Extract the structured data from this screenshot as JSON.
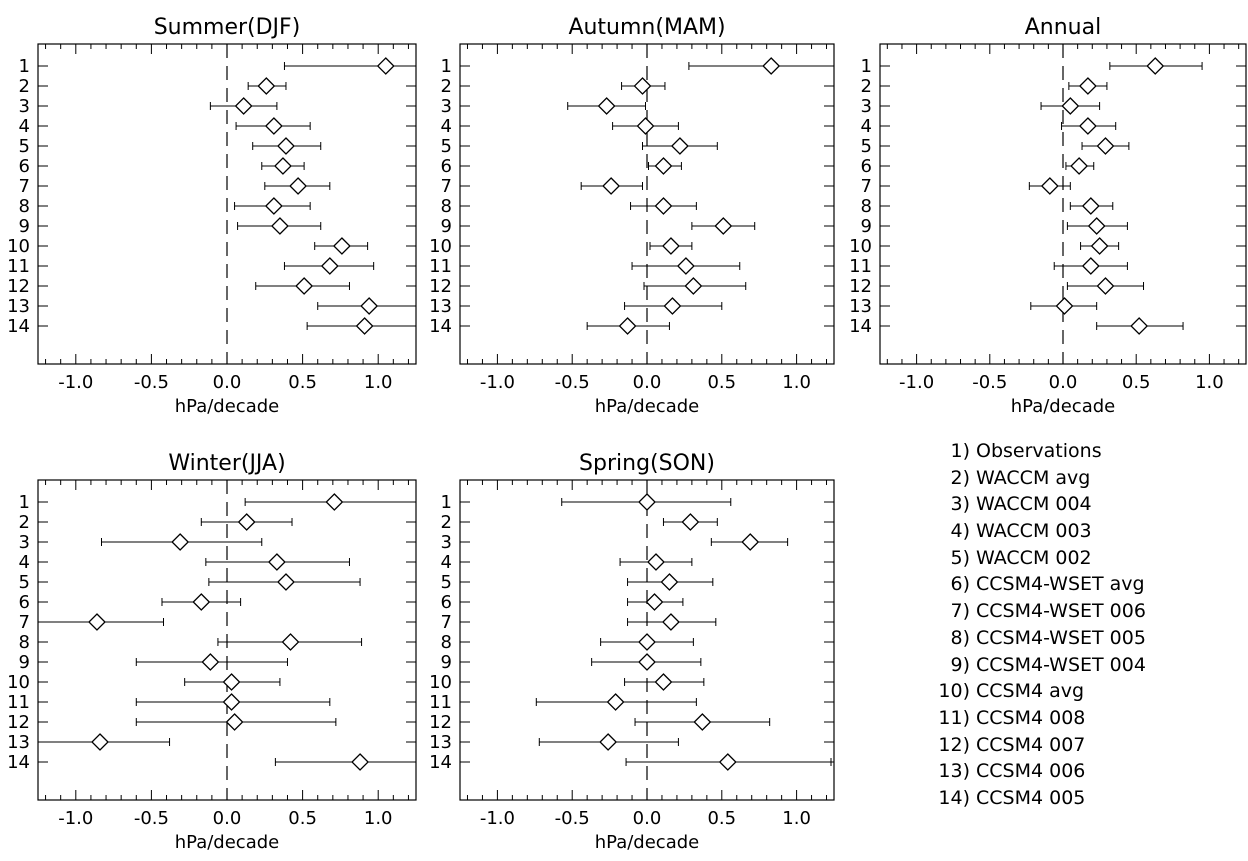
{
  "legend": {
    "items": [
      {
        "num": "1)",
        "label": "Observations"
      },
      {
        "num": "2)",
        "label": "WACCM avg"
      },
      {
        "num": "3)",
        "label": "WACCM 004"
      },
      {
        "num": "4)",
        "label": "WACCM 003"
      },
      {
        "num": "5)",
        "label": "WACCM 002"
      },
      {
        "num": "6)",
        "label": "CCSM4-WSET avg"
      },
      {
        "num": "7)",
        "label": "CCSM4-WSET 006"
      },
      {
        "num": "8)",
        "label": "CCSM4-WSET 005"
      },
      {
        "num": "9)",
        "label": "CCSM4-WSET 004"
      },
      {
        "num": "10)",
        "label": "CCSM4 avg"
      },
      {
        "num": "11)",
        "label": "CCSM4 008"
      },
      {
        "num": "12)",
        "label": "CCSM4 007"
      },
      {
        "num": "13)",
        "label": "CCSM4 006"
      },
      {
        "num": "14)",
        "label": "CCSM4 005"
      }
    ]
  },
  "chart_data": [
    {
      "type": "scatter",
      "title": "Summer(DJF)",
      "xlabel": "hPa/decade",
      "xlim": [
        -1.25,
        1.25
      ],
      "xticks": [
        "-1.0",
        "-0.5",
        "0.0",
        "0.5",
        "1.0"
      ],
      "y_labels": [
        "1",
        "2",
        "3",
        "4",
        "5",
        "6",
        "7",
        "8",
        "9",
        "10",
        "11",
        "12",
        "13",
        "14"
      ],
      "values": [
        1.05,
        0.26,
        0.11,
        0.31,
        0.39,
        0.37,
        0.47,
        0.31,
        0.35,
        0.76,
        0.68,
        0.51,
        0.94,
        0.91
      ],
      "lower": [
        0.38,
        0.14,
        -0.11,
        0.06,
        0.17,
        0.23,
        0.25,
        0.05,
        0.07,
        0.58,
        0.38,
        0.19,
        0.6,
        0.53
      ],
      "upper": [
        1.25,
        0.39,
        0.33,
        0.55,
        0.62,
        0.51,
        0.68,
        0.55,
        0.62,
        0.93,
        0.97,
        0.81,
        1.25,
        1.25
      ],
      "ref_line_x": 0.0
    },
    {
      "type": "scatter",
      "title": "Autumn(MAM)",
      "xlabel": "hPa/decade",
      "xlim": [
        -1.25,
        1.25
      ],
      "xticks": [
        "-1.0",
        "-0.5",
        "0.0",
        "0.5",
        "1.0"
      ],
      "y_labels": [
        "1",
        "2",
        "3",
        "4",
        "5",
        "6",
        "7",
        "8",
        "9",
        "10",
        "11",
        "12",
        "13",
        "14"
      ],
      "values": [
        0.83,
        -0.03,
        -0.27,
        -0.01,
        0.22,
        0.11,
        -0.24,
        0.11,
        0.51,
        0.16,
        0.26,
        0.31,
        0.17,
        -0.13
      ],
      "lower": [
        0.28,
        -0.17,
        -0.53,
        -0.23,
        -0.03,
        0.01,
        -0.44,
        -0.11,
        0.3,
        0.02,
        -0.1,
        -0.02,
        -0.15,
        -0.4
      ],
      "upper": [
        1.25,
        0.12,
        -0.01,
        0.21,
        0.47,
        0.23,
        -0.03,
        0.33,
        0.72,
        0.3,
        0.62,
        0.66,
        0.5,
        0.15
      ],
      "ref_line_x": 0.0
    },
    {
      "type": "scatter",
      "title": "Annual",
      "xlabel": "hPa/decade",
      "xlim": [
        -1.25,
        1.25
      ],
      "xticks": [
        "-1.0",
        "-0.5",
        "0.0",
        "0.5",
        "1.0"
      ],
      "y_labels": [
        "1",
        "2",
        "3",
        "4",
        "5",
        "6",
        "7",
        "8",
        "9",
        "10",
        "11",
        "12",
        "13",
        "14"
      ],
      "values": [
        0.63,
        0.17,
        0.05,
        0.17,
        0.29,
        0.11,
        -0.09,
        0.19,
        0.23,
        0.25,
        0.19,
        0.29,
        0.01,
        0.52
      ],
      "lower": [
        0.32,
        0.04,
        -0.15,
        -0.01,
        0.13,
        0.02,
        -0.23,
        0.05,
        0.03,
        0.12,
        -0.06,
        0.03,
        -0.22,
        0.23
      ],
      "upper": [
        0.95,
        0.3,
        0.25,
        0.36,
        0.45,
        0.21,
        0.05,
        0.34,
        0.44,
        0.38,
        0.44,
        0.55,
        0.23,
        0.82
      ],
      "ref_line_x": 0.0
    },
    {
      "type": "scatter",
      "title": "Winter(JJA)",
      "xlabel": "hPa/decade",
      "xlim": [
        -1.25,
        1.25
      ],
      "xticks": [
        "-1.0",
        "-0.5",
        "0.0",
        "0.5",
        "1.0"
      ],
      "y_labels": [
        "1",
        "2",
        "3",
        "4",
        "5",
        "6",
        "7",
        "8",
        "9",
        "10",
        "11",
        "12",
        "13",
        "14"
      ],
      "values": [
        0.71,
        0.13,
        -0.31,
        0.33,
        0.39,
        -0.17,
        -0.86,
        0.42,
        -0.11,
        0.03,
        0.03,
        0.05,
        -0.84,
        0.88
      ],
      "lower": [
        0.12,
        -0.17,
        -0.83,
        -0.14,
        -0.12,
        -0.43,
        -1.25,
        -0.06,
        -0.6,
        -0.28,
        -0.6,
        -0.6,
        -1.25,
        0.32
      ],
      "upper": [
        1.25,
        0.43,
        0.23,
        0.81,
        0.88,
        0.09,
        -0.42,
        0.89,
        0.4,
        0.35,
        0.68,
        0.72,
        -0.38,
        1.25
      ],
      "ref_line_x": 0.0
    },
    {
      "type": "scatter",
      "title": "Spring(SON)",
      "xlabel": "hPa/decade",
      "xlim": [
        -1.25,
        1.25
      ],
      "xticks": [
        "-1.0",
        "-0.5",
        "0.0",
        "0.5",
        "1.0"
      ],
      "y_labels": [
        "1",
        "2",
        "3",
        "4",
        "5",
        "6",
        "7",
        "8",
        "9",
        "10",
        "11",
        "12",
        "13",
        "14"
      ],
      "values": [
        0.0,
        0.29,
        0.69,
        0.06,
        0.15,
        0.05,
        0.16,
        0.0,
        0.0,
        0.11,
        -0.21,
        0.37,
        -0.26,
        0.54
      ],
      "lower": [
        -0.57,
        0.11,
        0.43,
        -0.18,
        -0.13,
        -0.13,
        -0.13,
        -0.31,
        -0.37,
        -0.15,
        -0.74,
        -0.08,
        -0.72,
        -0.14
      ],
      "upper": [
        0.56,
        0.47,
        0.94,
        0.3,
        0.44,
        0.24,
        0.46,
        0.31,
        0.36,
        0.38,
        0.33,
        0.82,
        0.21,
        1.23
      ],
      "ref_line_x": 0.0
    }
  ]
}
